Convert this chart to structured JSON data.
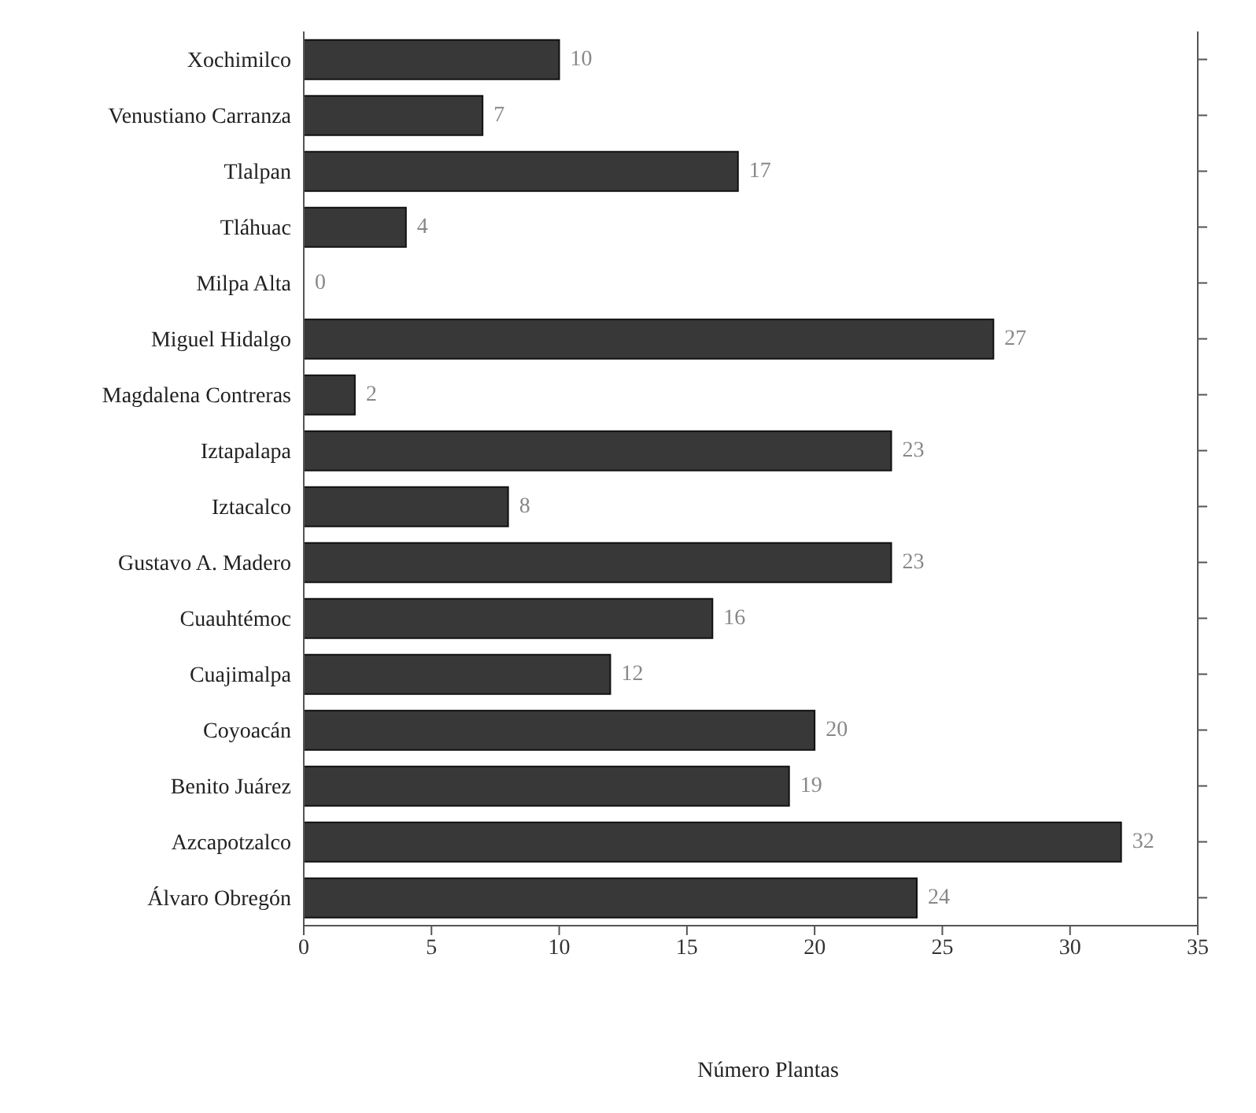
{
  "chart_data": {
    "type": "bar",
    "orientation": "horizontal",
    "xlabel": "Número Plantas",
    "categories": [
      "Xochimilco",
      "Venustiano Carranza",
      "Tlalpan",
      "Tláhuac",
      "Milpa Alta",
      "Miguel Hidalgo",
      "Magdalena Contreras",
      "Iztapalapa",
      "Iztacalco",
      "Gustavo A. Madero",
      "Cuauhtémoc",
      "Cuajimalpa",
      "Coyoacán",
      "Benito Juárez",
      "Azcapotzalco",
      "Álvaro Obregón"
    ],
    "values": [
      10,
      7,
      17,
      4,
      0,
      27,
      2,
      23,
      8,
      23,
      16,
      12,
      20,
      19,
      32,
      24
    ],
    "color": "#383838",
    "xlim": [
      0,
      35
    ],
    "xticks": [
      0,
      5,
      10,
      15,
      20,
      25,
      30,
      35
    ],
    "data_labels": true,
    "grid": false,
    "legend": false
  }
}
